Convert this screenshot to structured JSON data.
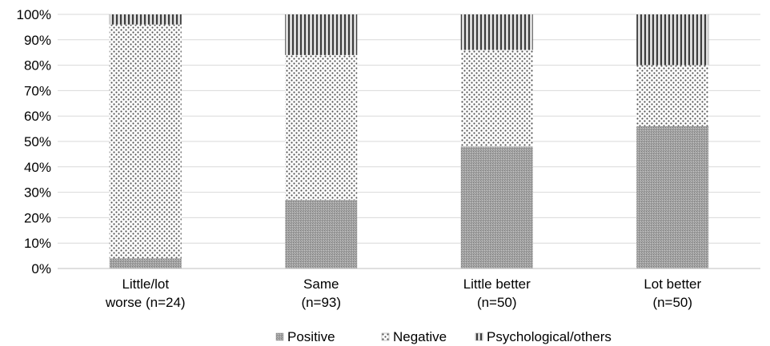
{
  "chart_data": {
    "type": "bar",
    "stacked": true,
    "orientation": "vertical",
    "grid": true,
    "legend_position": "bottom",
    "ylim": [
      0,
      100
    ],
    "y_ticks": [
      "0%",
      "10%",
      "20%",
      "30%",
      "40%",
      "50%",
      "60%",
      "70%",
      "80%",
      "90%",
      "100%"
    ],
    "y_tick_values": [
      0,
      10,
      20,
      30,
      40,
      50,
      60,
      70,
      80,
      90,
      100
    ],
    "categories": [
      [
        "Little/lot",
        "worse (n=24)"
      ],
      [
        "Same",
        "(n=93)"
      ],
      [
        "Little better",
        "(n=50)"
      ],
      [
        "Lot better",
        "(n=50)"
      ]
    ],
    "series": [
      {
        "name": "Positive",
        "pattern": "fine-grey",
        "values": [
          4,
          27,
          48,
          56
        ]
      },
      {
        "name": "Negative",
        "pattern": "dots",
        "values": [
          92,
          57,
          38,
          24
        ]
      },
      {
        "name": "Psychological/others",
        "pattern": "vertical-stripes",
        "values": [
          4,
          16,
          14,
          20
        ]
      }
    ]
  }
}
